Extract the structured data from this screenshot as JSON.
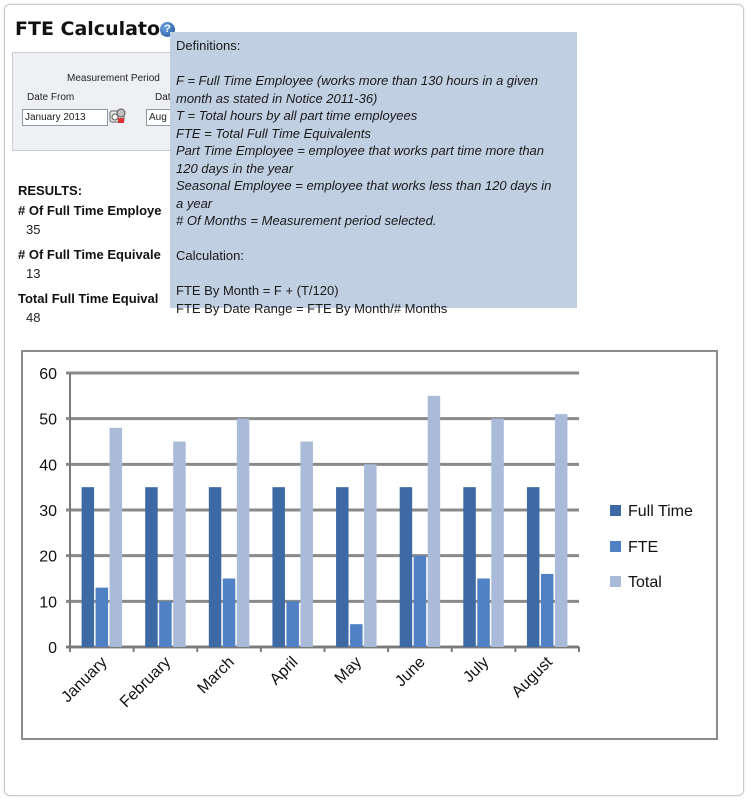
{
  "app": {
    "title": "FTE Calculator",
    "help_icon": "question-circle-icon"
  },
  "form": {
    "measurement_period_label": "Measurement Period",
    "date_from_label": "Date From",
    "date_to_label": "Dat",
    "date_from_value": "January 2013",
    "date_to_value": "Aug",
    "calendar_icon": "calendar-picker-icon"
  },
  "results": {
    "heading": "RESULTS:",
    "items": [
      {
        "label": "# Of Full Time Employe",
        "value": "35"
      },
      {
        "label": "# Of Full Time Equivale",
        "value": "13"
      },
      {
        "label": "Total Full Time Equival",
        "value": "48"
      }
    ]
  },
  "tooltip": {
    "definitions_heading": "Definitions:",
    "lines": [
      "F = Full Time Employee (works more than 130 hours in a given",
      "month as stated in Notice 2011-36)",
      "T = Total hours by all part time employees",
      "FTE = Total Full Time Equivalents",
      "Part Time Employee = employee that works part time more than",
      "120 days in the year",
      "Seasonal Employee = employee that works less than 120 days in",
      "a year",
      "# Of Months = Measurement period selected."
    ],
    "calculation_heading": "Calculation:",
    "calc_lines": [
      "FTE By Month = F + (T/120)",
      "FTE By Date Range = FTE By Month/# Months"
    ]
  },
  "chart_data": {
    "type": "bar",
    "categories": [
      "January",
      "February",
      "March",
      "April",
      "May",
      "June",
      "July",
      "August"
    ],
    "series": [
      {
        "name": "Full Time",
        "values": [
          35,
          35,
          35,
          35,
          35,
          35,
          35,
          35
        ],
        "color": "#3d6aa4"
      },
      {
        "name": "FTE",
        "values": [
          13,
          10,
          15,
          10,
          5,
          20,
          15,
          16
        ],
        "color": "#4f81c4"
      },
      {
        "name": "Total",
        "values": [
          48,
          45,
          50,
          45,
          40,
          55,
          50,
          51
        ],
        "color": "#a9bbd9"
      }
    ],
    "ylim": [
      0,
      60
    ],
    "yticks": [
      "0",
      "10",
      "20",
      "30",
      "40",
      "50",
      "60"
    ],
    "grid": true,
    "legend": "right"
  }
}
